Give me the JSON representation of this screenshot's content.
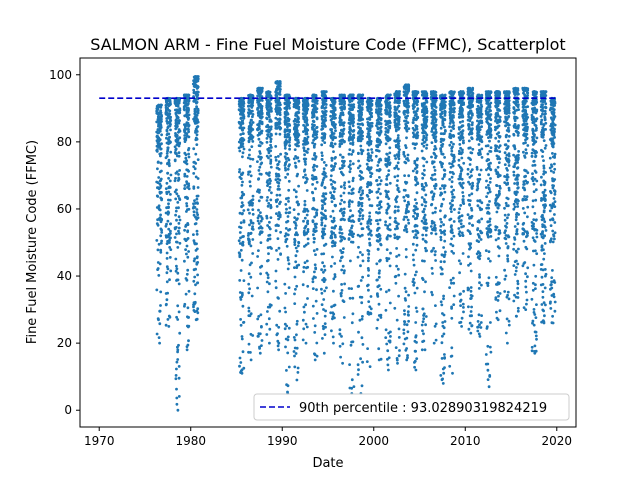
{
  "chart_data": {
    "type": "scatter",
    "title": "SALMON ARM - Fine Fuel Moisture Code (FFMC), Scatterplot",
    "xlabel": "Date",
    "ylabel": "Fine Fuel Moisture Code (FFMC)",
    "xlim": [
      1967.9,
      2022.1
    ],
    "ylim": [
      -5,
      105
    ],
    "x_ticks": [
      1970,
      1980,
      1990,
      2000,
      2010,
      2020
    ],
    "y_ticks": [
      0,
      20,
      40,
      60,
      80,
      100
    ],
    "grid": false,
    "legend_position": "lower-right",
    "colors": {
      "points": "#1f77b4",
      "threshold": "#0000cc"
    },
    "threshold": {
      "label": "90th percentile : 93.02890319824219",
      "value": 93.02890319824219,
      "x_range": [
        1970,
        2020
      ]
    },
    "season_columns": [
      {
        "year": 1976,
        "min": 20,
        "max": 91
      },
      {
        "year": 1977,
        "min": 25,
        "max": 93
      },
      {
        "year": 1978,
        "min": 0,
        "max": 93
      },
      {
        "year": 1979,
        "min": 18,
        "max": 94
      },
      {
        "year": 1980,
        "min": 27,
        "max": 99.5
      },
      {
        "year": 1985,
        "min": 11,
        "max": 93
      },
      {
        "year": 1986,
        "min": 15,
        "max": 94
      },
      {
        "year": 1987,
        "min": 17,
        "max": 96
      },
      {
        "year": 1988,
        "min": 20,
        "max": 95
      },
      {
        "year": 1989,
        "min": 18,
        "max": 98
      },
      {
        "year": 1990,
        "min": 5,
        "max": 94
      },
      {
        "year": 1991,
        "min": 9,
        "max": 93
      },
      {
        "year": 1992,
        "min": 20,
        "max": 93
      },
      {
        "year": 1993,
        "min": 15,
        "max": 94
      },
      {
        "year": 1994,
        "min": 17,
        "max": 95
      },
      {
        "year": 1995,
        "min": 20,
        "max": 93
      },
      {
        "year": 1996,
        "min": 14,
        "max": 94
      },
      {
        "year": 1997,
        "min": 5,
        "max": 94
      },
      {
        "year": 1998,
        "min": 5,
        "max": 94
      },
      {
        "year": 1999,
        "min": 13,
        "max": 93
      },
      {
        "year": 2000,
        "min": 15,
        "max": 93
      },
      {
        "year": 2001,
        "min": 12,
        "max": 94
      },
      {
        "year": 2002,
        "min": 14,
        "max": 95
      },
      {
        "year": 2003,
        "min": 15,
        "max": 97
      },
      {
        "year": 2004,
        "min": 12,
        "max": 95
      },
      {
        "year": 2005,
        "min": 18,
        "max": 95
      },
      {
        "year": 2006,
        "min": 20,
        "max": 95
      },
      {
        "year": 2007,
        "min": 8,
        "max": 94
      },
      {
        "year": 2008,
        "min": 11,
        "max": 95
      },
      {
        "year": 2009,
        "min": 25,
        "max": 95
      },
      {
        "year": 2010,
        "min": 23,
        "max": 96
      },
      {
        "year": 2011,
        "min": 22,
        "max": 94
      },
      {
        "year": 2012,
        "min": 7,
        "max": 95
      },
      {
        "year": 2013,
        "min": 27,
        "max": 95
      },
      {
        "year": 2014,
        "min": 20,
        "max": 95
      },
      {
        "year": 2015,
        "min": 28,
        "max": 96
      },
      {
        "year": 2016,
        "min": 30,
        "max": 96
      },
      {
        "year": 2017,
        "min": 17,
        "max": 95
      },
      {
        "year": 2018,
        "min": 26,
        "max": 95
      },
      {
        "year": 2019,
        "min": 26,
        "max": 93
      }
    ]
  }
}
